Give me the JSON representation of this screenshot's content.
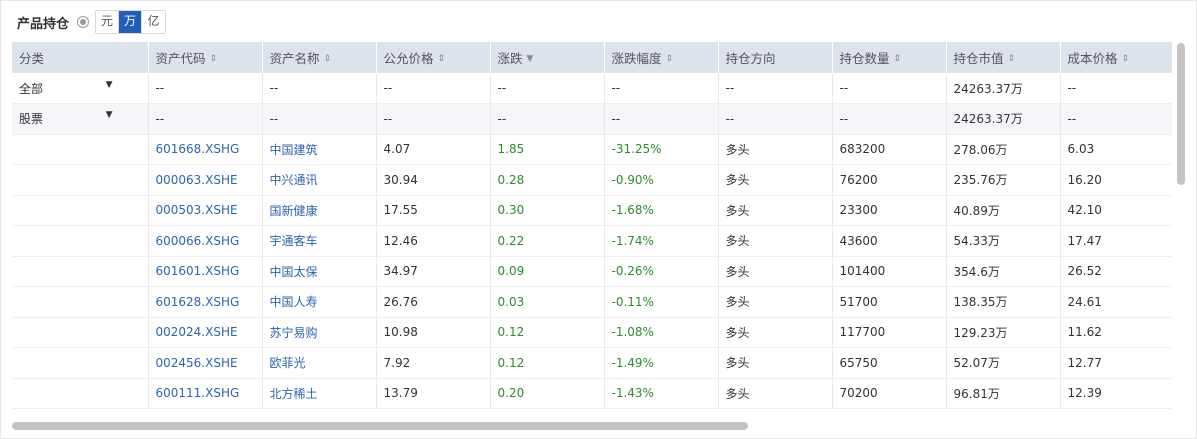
{
  "header": {
    "title": "产品持仓",
    "units": [
      "元",
      "万",
      "亿"
    ],
    "active_unit": "万"
  },
  "columns": [
    {
      "label": "分类",
      "sort": ""
    },
    {
      "label": "资产代码",
      "sort": "⇕"
    },
    {
      "label": "资产名称",
      "sort": "⇕"
    },
    {
      "label": "公允价格",
      "sort": "⇕"
    },
    {
      "label": "涨跌",
      "sort": "▼"
    },
    {
      "label": "涨跌幅度",
      "sort": "⇕"
    },
    {
      "label": "持仓方向",
      "sort": ""
    },
    {
      "label": "持仓数量",
      "sort": "⇕"
    },
    {
      "label": "持仓市值",
      "sort": "⇕"
    },
    {
      "label": "成本价格",
      "sort": "⇕"
    }
  ],
  "group_rows": [
    {
      "category": "全部",
      "cells": [
        "--",
        "--",
        "--",
        "--",
        "--",
        "--",
        "--",
        "24263.37万",
        "--"
      ]
    },
    {
      "category": "股票",
      "cells": [
        "--",
        "--",
        "--",
        "--",
        "--",
        "--",
        "--",
        "24263.37万",
        "--"
      ]
    }
  ],
  "rows": [
    {
      "code": "601668.XSHG",
      "name": "中国建筑",
      "price": "4.07",
      "change": "1.85",
      "pct": "-31.25%",
      "dir": "多头",
      "qty": "683200",
      "mv": "278.06万",
      "cost": "6.03"
    },
    {
      "code": "000063.XSHE",
      "name": "中兴通讯",
      "price": "30.94",
      "change": "0.28",
      "pct": "-0.90%",
      "dir": "多头",
      "qty": "76200",
      "mv": "235.76万",
      "cost": "16.20"
    },
    {
      "code": "000503.XSHE",
      "name": "国新健康",
      "price": "17.55",
      "change": "0.30",
      "pct": "-1.68%",
      "dir": "多头",
      "qty": "23300",
      "mv": "40.89万",
      "cost": "42.10"
    },
    {
      "code": "600066.XSHG",
      "name": "宇通客车",
      "price": "12.46",
      "change": "0.22",
      "pct": "-1.74%",
      "dir": "多头",
      "qty": "43600",
      "mv": "54.33万",
      "cost": "17.47"
    },
    {
      "code": "601601.XSHG",
      "name": "中国太保",
      "price": "34.97",
      "change": "0.09",
      "pct": "-0.26%",
      "dir": "多头",
      "qty": "101400",
      "mv": "354.6万",
      "cost": "26.52"
    },
    {
      "code": "601628.XSHG",
      "name": "中国人寿",
      "price": "26.76",
      "change": "0.03",
      "pct": "-0.11%",
      "dir": "多头",
      "qty": "51700",
      "mv": "138.35万",
      "cost": "24.61"
    },
    {
      "code": "002024.XSHE",
      "name": "苏宁易购",
      "price": "10.98",
      "change": "0.12",
      "pct": "-1.08%",
      "dir": "多头",
      "qty": "117700",
      "mv": "129.23万",
      "cost": "11.62"
    },
    {
      "code": "002456.XSHE",
      "name": "欧菲光",
      "price": "7.92",
      "change": "0.12",
      "pct": "-1.49%",
      "dir": "多头",
      "qty": "65750",
      "mv": "52.07万",
      "cost": "12.77"
    },
    {
      "code": "600111.XSHG",
      "name": "北方稀土",
      "price": "13.79",
      "change": "0.20",
      "pct": "-1.43%",
      "dir": "多头",
      "qty": "70200",
      "mv": "96.81万",
      "cost": "12.39"
    }
  ],
  "colors": {
    "accent": "#1f5fb5",
    "header_bg": "#dde3ea",
    "link": "#2d65ae",
    "positive": "#2e8b2e"
  }
}
